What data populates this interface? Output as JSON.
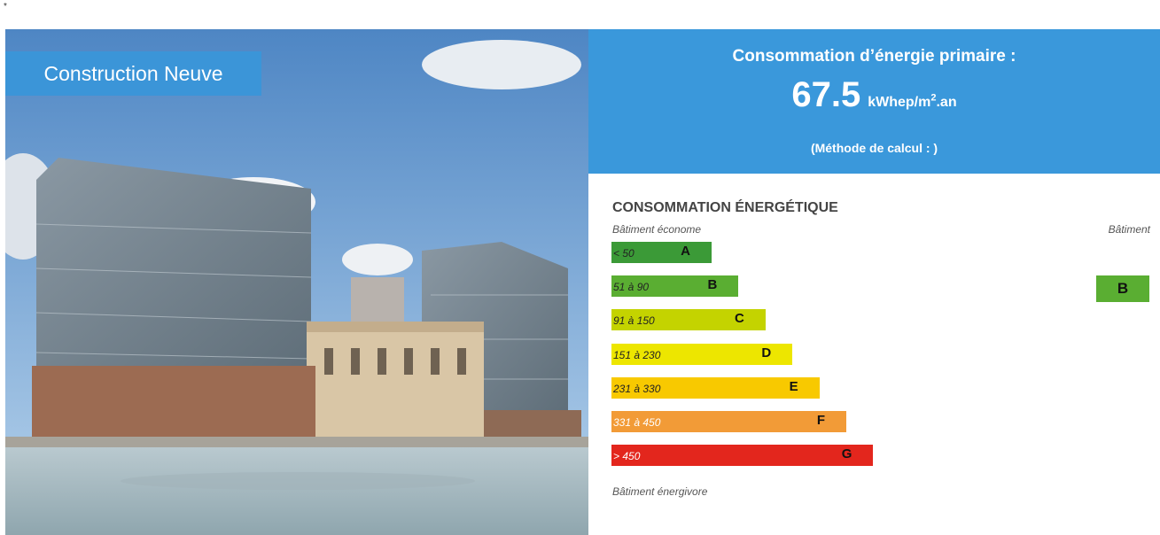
{
  "asterisk": "*",
  "photo": {
    "badge": "Construction Neuve"
  },
  "summary": {
    "title": "Consommation d’énergie primaire :",
    "value": "67.5",
    "unit_main": "kWhep/m",
    "unit_sup": "2",
    "unit_end": ".an",
    "method": "(Méthode de calcul : )"
  },
  "label": {
    "title": "CONSOMMATION ÉNERGÉTIQUE",
    "top_note": "Bâtiment économe",
    "column_header": "Bâtiment",
    "bottom_note": "Bâtiment énergivore",
    "rows": [
      {
        "range": "< 50",
        "letter": "A",
        "color": "#3b9a37"
      },
      {
        "range": "51 à 90",
        "letter": "B",
        "color": "#5aae32"
      },
      {
        "range": "91 à 150",
        "letter": "C",
        "color": "#c4d300"
      },
      {
        "range": "151 à 230",
        "letter": "D",
        "color": "#ede600"
      },
      {
        "range": "231 à 330",
        "letter": "E",
        "color": "#f8c900"
      },
      {
        "range": "331 à 450",
        "letter": "F",
        "color": "#f29b37"
      },
      {
        "range": "> 450",
        "letter": "G",
        "color": "#e3261d"
      }
    ],
    "building_class": "B"
  }
}
